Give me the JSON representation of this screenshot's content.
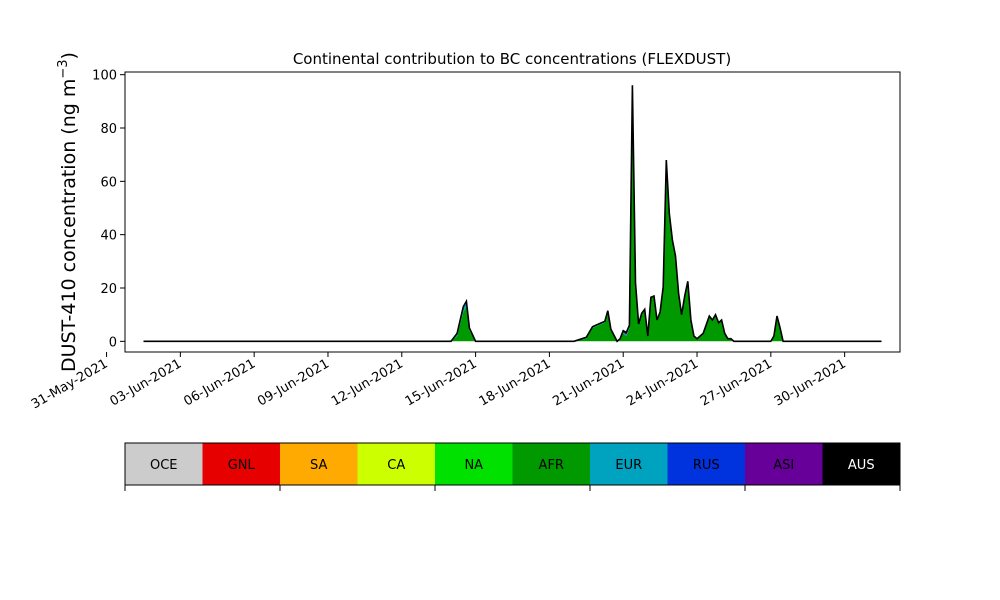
{
  "chart_data": {
    "type": "area",
    "title": "Continental contribution to BC concentrations (FLEXDUST)",
    "ylabel_main": "DUST-410 concentration (ng m",
    "ylabel_exp": "−3",
    "ylabel_close": ")",
    "xlabel": "",
    "ylim": [
      -4,
      101
    ],
    "yticks": [
      0,
      20,
      40,
      60,
      80,
      100
    ],
    "xlim": [
      "2021-05-31T18:00",
      "2021-07-02T06:00"
    ],
    "xticks": [
      "2021-05-31",
      "2021-06-03",
      "2021-06-06",
      "2021-06-09",
      "2021-06-12",
      "2021-06-15",
      "2021-06-18",
      "2021-06-21",
      "2021-06-24",
      "2021-06-27",
      "2021-06-30"
    ],
    "xtick_labels": [
      "31-May-2021",
      "03-Jun-2021",
      "06-Jun-2021",
      "09-Jun-2021",
      "12-Jun-2021",
      "15-Jun-2021",
      "18-Jun-2021",
      "21-Jun-2021",
      "24-Jun-2021",
      "27-Jun-2021",
      "30-Jun-2021"
    ],
    "grid": false,
    "legend_placement": "bottom colorbar",
    "regions": [
      {
        "name": "OCE",
        "color": "#cccccc",
        "text_color": "#000000"
      },
      {
        "name": "GNL",
        "color": "#e60000",
        "text_color": "#000000"
      },
      {
        "name": "SA",
        "color": "#ffaa00",
        "text_color": "#000000"
      },
      {
        "name": "CA",
        "color": "#ccff00",
        "text_color": "#000000"
      },
      {
        "name": "NA",
        "color": "#00e100",
        "text_color": "#000000"
      },
      {
        "name": "AFR",
        "color": "#009900",
        "text_color": "#000000"
      },
      {
        "name": "EUR",
        "color": "#00a3bf",
        "text_color": "#000000"
      },
      {
        "name": "RUS",
        "color": "#0033dd",
        "text_color": "#000000"
      },
      {
        "name": "ASI",
        "color": "#660099",
        "text_color": "#000000"
      },
      {
        "name": "AUS",
        "color": "#000000",
        "text_color": "#ffffff"
      }
    ],
    "x": [
      "2021-06-01T12:00",
      "2021-06-02T12:00",
      "2021-06-05T06:00",
      "2021-06-05T12:00",
      "2021-06-05T18:00",
      "2021-06-14T00:00",
      "2021-06-14T06:00",
      "2021-06-14T12:00",
      "2021-06-14T15:00",
      "2021-06-14T18:00",
      "2021-06-15T00:00",
      "2021-06-19T00:00",
      "2021-06-19T12:00",
      "2021-06-19T18:00",
      "2021-06-20T00:00",
      "2021-06-20T06:00",
      "2021-06-20T09:00",
      "2021-06-20T12:00",
      "2021-06-20T18:00",
      "2021-06-20T21:00",
      "2021-06-21T00:00",
      "2021-06-21T03:00",
      "2021-06-21T06:00",
      "2021-06-21T09:00",
      "2021-06-21T12:00",
      "2021-06-21T15:00",
      "2021-06-21T18:00",
      "2021-06-21T21:00",
      "2021-06-22T00:00",
      "2021-06-22T03:00",
      "2021-06-22T06:00",
      "2021-06-22T09:00",
      "2021-06-22T12:00",
      "2021-06-22T15:00",
      "2021-06-22T18:00",
      "2021-06-22T21:00",
      "2021-06-23T00:00",
      "2021-06-23T03:00",
      "2021-06-23T06:00",
      "2021-06-23T09:00",
      "2021-06-23T12:00",
      "2021-06-23T15:00",
      "2021-06-23T18:00",
      "2021-06-23T21:00",
      "2021-06-24T00:00",
      "2021-06-24T06:00",
      "2021-06-24T12:00",
      "2021-06-24T15:00",
      "2021-06-24T18:00",
      "2021-06-24T21:00",
      "2021-06-25T00:00",
      "2021-06-25T03:00",
      "2021-06-25T06:00",
      "2021-06-25T09:00",
      "2021-06-25T12:00",
      "2021-06-25T18:00",
      "2021-06-26T00:00",
      "2021-06-26T12:00",
      "2021-06-27T00:00",
      "2021-06-27T03:00",
      "2021-06-27T06:00",
      "2021-06-27T09:00",
      "2021-06-27T12:00",
      "2021-06-27T18:00",
      "2021-07-01T12:00"
    ],
    "series": [
      {
        "region": "AFR",
        "values": [
          0,
          0,
          0,
          0,
          0,
          0,
          2,
          11,
          13,
          4,
          0,
          0,
          1,
          5,
          6,
          7,
          11,
          4,
          0,
          1,
          3,
          2,
          5,
          90,
          20,
          6,
          10,
          12,
          2,
          16,
          17,
          8,
          11,
          20,
          63,
          45,
          38,
          32,
          18,
          10,
          17,
          22,
          8,
          2,
          1,
          3,
          9,
          8,
          10,
          7,
          8,
          3,
          1,
          1,
          0,
          0,
          0,
          0,
          0,
          2,
          9,
          5,
          0,
          0,
          0
        ]
      },
      {
        "region": "EUR",
        "values": [
          0,
          0,
          0,
          0,
          0,
          0,
          1,
          2,
          2,
          1,
          0,
          0,
          0.5,
          0.5,
          0.5,
          0.5,
          0.5,
          0.5,
          0,
          0,
          0.3,
          0.5,
          0.5,
          0,
          0,
          0,
          0,
          0,
          0,
          0,
          0,
          0,
          0,
          0,
          0,
          0,
          0,
          0,
          0,
          0,
          0,
          0,
          0,
          0,
          0,
          0,
          0,
          0,
          0,
          0,
          0,
          0,
          0,
          0,
          0,
          0,
          0,
          0,
          0,
          0,
          0,
          0,
          0,
          0,
          0
        ]
      },
      {
        "region": "ASI",
        "values": [
          0,
          0,
          0,
          0,
          0,
          0,
          0,
          0,
          0,
          0,
          0,
          0,
          0,
          0,
          0,
          0,
          0,
          0,
          0,
          0,
          0.7,
          0.8,
          0.5,
          6,
          2,
          0.5,
          0.5,
          0,
          0,
          0.5,
          0,
          0,
          0,
          0.5,
          5,
          3,
          0,
          0,
          0,
          0,
          0,
          0.5,
          0,
          0,
          0,
          0,
          0.5,
          0,
          0,
          0,
          0,
          0,
          0,
          0,
          0,
          0,
          0,
          0,
          0,
          0,
          0.5,
          0,
          0,
          0,
          0
        ]
      }
    ]
  }
}
